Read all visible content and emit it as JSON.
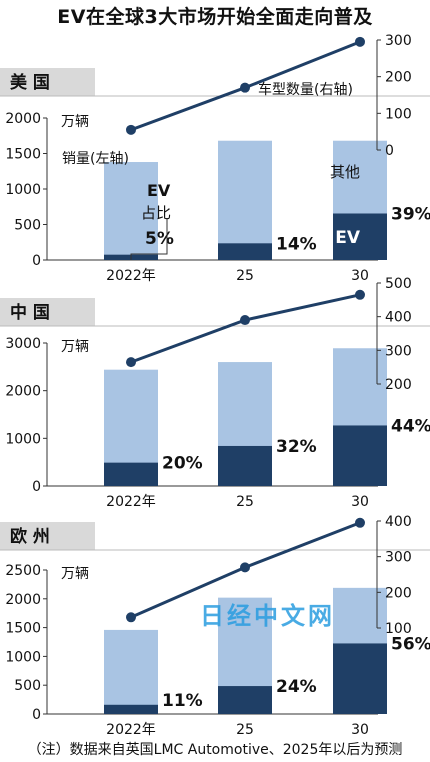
{
  "title": "EV在全球3大市场开始全面走向普及",
  "note": "（注）数据来自英国LMC Automotive、2025年以后为预测",
  "watermark": "日经中文网",
  "colors": {
    "total": "#a9c4e3",
    "ev": "#1f3f66",
    "line": "#1f3f66",
    "panel_label_bg": "#d9d9d9"
  },
  "chart_data": [
    {
      "type": "bar",
      "region": "美 国",
      "categories": [
        "2022年",
        "25",
        "30"
      ],
      "series": [
        {
          "name": "其他",
          "values": [
            1380,
            1680,
            1680
          ]
        },
        {
          "name": "EV",
          "values": [
            75,
            235,
            655
          ]
        }
      ],
      "ev_share_labels": [
        "5%",
        "14%",
        "39%"
      ],
      "line": {
        "name": "车型数量(右轴)",
        "values": [
          55,
          170,
          295
        ]
      },
      "left_unit": "万辆",
      "left_label": "销量(左轴)",
      "ev_share_title": "EV\n占比",
      "ylim": [
        0,
        2000
      ],
      "yticks": [
        0,
        500,
        1000,
        1500,
        2000
      ],
      "y2lim": [
        0,
        300
      ],
      "y2ticks": [
        0,
        100,
        200,
        300
      ]
    },
    {
      "type": "bar",
      "region": "中 国",
      "categories": [
        "2022年",
        "25",
        "30"
      ],
      "series": [
        {
          "name": "其他",
          "values": [
            2440,
            2600,
            2890
          ]
        },
        {
          "name": "EV",
          "values": [
            490,
            840,
            1270
          ]
        }
      ],
      "ev_share_labels": [
        "20%",
        "32%",
        "44%"
      ],
      "line": {
        "values": [
          265,
          390,
          465
        ]
      },
      "left_unit": "万辆",
      "ylim": [
        0,
        3000
      ],
      "yticks": [
        0,
        1000,
        2000,
        3000
      ],
      "y2lim": [
        200,
        500
      ],
      "y2ticks": [
        200,
        300,
        400,
        500
      ]
    },
    {
      "type": "bar",
      "region": "欧 州",
      "categories": [
        "2022年",
        "25",
        "30"
      ],
      "series": [
        {
          "name": "其他",
          "values": [
            1460,
            2020,
            2190
          ]
        },
        {
          "name": "EV",
          "values": [
            160,
            485,
            1225
          ]
        }
      ],
      "ev_share_labels": [
        "11%",
        "24%",
        "56%"
      ],
      "line": {
        "values": [
          130,
          270,
          395
        ]
      },
      "left_unit": "万辆",
      "ylim": [
        0,
        2500
      ],
      "yticks": [
        0,
        500,
        1000,
        1500,
        2000,
        2500
      ],
      "y2lim": [
        100,
        400
      ],
      "y2ticks": [
        100,
        200,
        300,
        400
      ]
    }
  ]
}
